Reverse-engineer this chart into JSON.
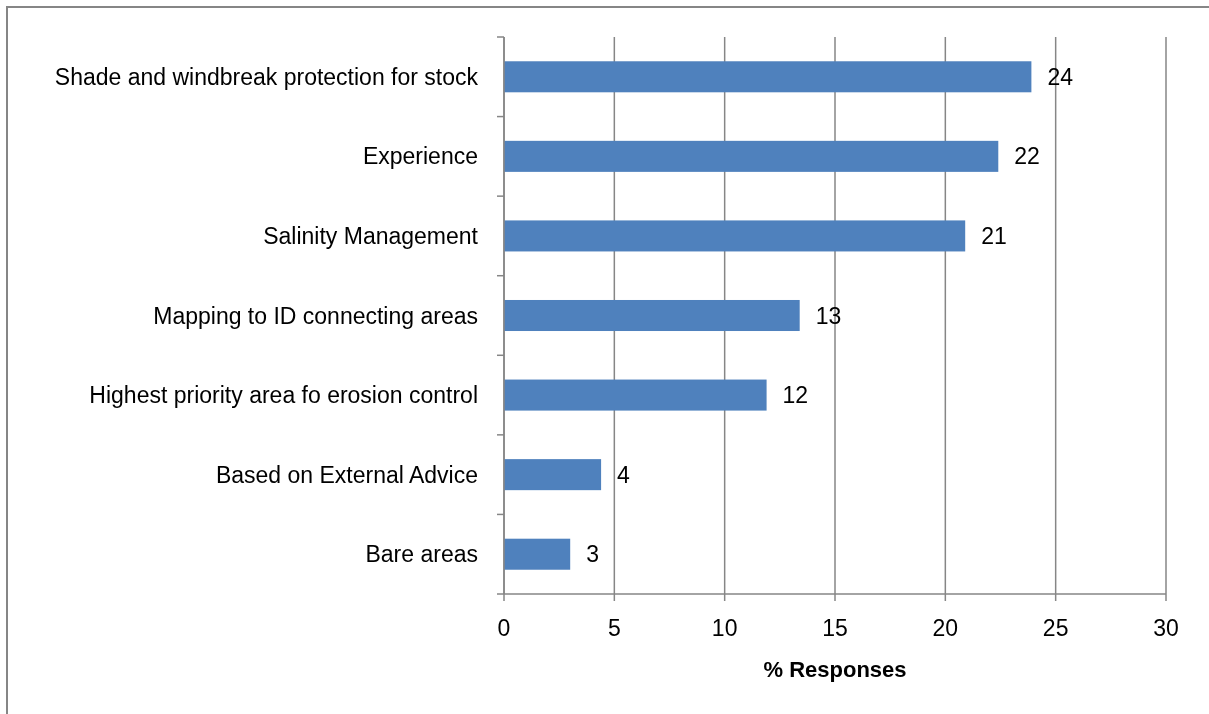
{
  "chart_data": {
    "type": "bar",
    "orientation": "horizontal",
    "categories": [
      "Shade and windbreak protection for stock",
      "Experience",
      "Salinity Management",
      "Mapping to ID connecting areas",
      "Highest priority area fo erosion control",
      "Based on External Advice",
      "Bare areas"
    ],
    "values": [
      23.9,
      22.4,
      20.9,
      13.4,
      11.9,
      4.4,
      3.0
    ],
    "value_labels": [
      "24",
      "22",
      "21",
      "13",
      "12",
      "4",
      "3"
    ],
    "color": "#4f81bd",
    "xlabel": "% Responses",
    "xlim": [
      0,
      30
    ],
    "xticks": [
      0,
      5,
      10,
      15,
      20,
      25,
      30
    ],
    "grid": "x"
  }
}
